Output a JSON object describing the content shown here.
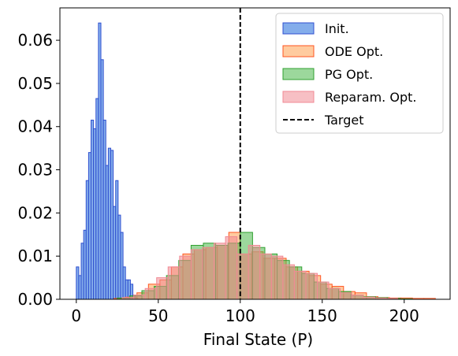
{
  "chart_data": {
    "type": "histogram",
    "xlabel": "Final State (P)",
    "ylabel": "",
    "xlim": [
      -10,
      228
    ],
    "ylim": [
      0,
      0.0675
    ],
    "x_ticks": [
      0,
      50,
      100,
      150,
      200
    ],
    "y_ticks": [
      0.0,
      0.01,
      0.02,
      0.03,
      0.04,
      0.05,
      0.06
    ],
    "y_tick_labels": [
      "0.00",
      "0.01",
      "0.02",
      "0.03",
      "0.04",
      "0.05",
      "0.06"
    ],
    "grid": false,
    "legend": "top-right",
    "target": {
      "name": "Target",
      "x": 100,
      "style": "dashed",
      "color": "#000000"
    },
    "series": [
      {
        "name": "Init.",
        "fill": "#6f9fe8",
        "edge": "#3050d0",
        "fill_opacity": 0.85,
        "bin_width": 1.5,
        "bins": [
          {
            "x0": 0.0,
            "value": 0.0075
          },
          {
            "x0": 1.5,
            "value": 0.0055
          },
          {
            "x0": 3.0,
            "value": 0.013
          },
          {
            "x0": 4.5,
            "value": 0.016
          },
          {
            "x0": 6.0,
            "value": 0.0275
          },
          {
            "x0": 7.5,
            "value": 0.034
          },
          {
            "x0": 9.0,
            "value": 0.0415
          },
          {
            "x0": 10.5,
            "value": 0.0395
          },
          {
            "x0": 12.0,
            "value": 0.0465
          },
          {
            "x0": 13.5,
            "value": 0.064
          },
          {
            "x0": 15.0,
            "value": 0.0555
          },
          {
            "x0": 16.5,
            "value": 0.0415
          },
          {
            "x0": 18.0,
            "value": 0.031
          },
          {
            "x0": 19.5,
            "value": 0.035
          },
          {
            "x0": 21.0,
            "value": 0.0345
          },
          {
            "x0": 22.5,
            "value": 0.0215
          },
          {
            "x0": 24.0,
            "value": 0.0275
          },
          {
            "x0": 25.5,
            "value": 0.0195
          },
          {
            "x0": 27.0,
            "value": 0.0155
          },
          {
            "x0": 28.5,
            "value": 0.0075
          },
          {
            "x0": 30.0,
            "value": 0.0045
          },
          {
            "x0": 31.5,
            "value": 0.0045
          },
          {
            "x0": 33.0,
            "value": 0.0035
          },
          {
            "x0": 34.5,
            "value": 0.001
          },
          {
            "x0": 36.0,
            "value": 0.0003
          }
        ]
      },
      {
        "name": "ODE Opt.",
        "fill": "#ffa050",
        "edge": "#ff5522",
        "fill_opacity": 0.55,
        "bin_width": 7,
        "bins": [
          {
            "x0": 23,
            "value": 0.0002
          },
          {
            "x0": 30,
            "value": 0.0005
          },
          {
            "x0": 37,
            "value": 0.0015
          },
          {
            "x0": 44,
            "value": 0.0035
          },
          {
            "x0": 51,
            "value": 0.0045
          },
          {
            "x0": 58,
            "value": 0.0075
          },
          {
            "x0": 65,
            "value": 0.0105
          },
          {
            "x0": 72,
            "value": 0.0115
          },
          {
            "x0": 79,
            "value": 0.012
          },
          {
            "x0": 86,
            "value": 0.0125
          },
          {
            "x0": 93,
            "value": 0.0155
          },
          {
            "x0": 100,
            "value": 0.0105
          },
          {
            "x0": 107,
            "value": 0.011
          },
          {
            "x0": 114,
            "value": 0.0095
          },
          {
            "x0": 121,
            "value": 0.0095
          },
          {
            "x0": 128,
            "value": 0.0075
          },
          {
            "x0": 135,
            "value": 0.0065
          },
          {
            "x0": 142,
            "value": 0.0055
          },
          {
            "x0": 149,
            "value": 0.0035
          },
          {
            "x0": 156,
            "value": 0.003
          },
          {
            "x0": 163,
            "value": 0.0018
          },
          {
            "x0": 170,
            "value": 0.0015
          },
          {
            "x0": 177,
            "value": 0.0006
          },
          {
            "x0": 184,
            "value": 0.0004
          },
          {
            "x0": 191,
            "value": 0.0003
          },
          {
            "x0": 198,
            "value": 0.0003
          },
          {
            "x0": 205,
            "value": 0.0002
          },
          {
            "x0": 212,
            "value": 0.0002
          }
        ]
      },
      {
        "name": "PG Opt.",
        "fill": "#4ab84a",
        "edge": "#30a030",
        "fill_opacity": 0.55,
        "bin_width": 7.5,
        "bins": [
          {
            "x0": 25,
            "value": 0.0003
          },
          {
            "x0": 32.5,
            "value": 0.0008
          },
          {
            "x0": 40,
            "value": 0.002
          },
          {
            "x0": 47.5,
            "value": 0.003
          },
          {
            "x0": 55,
            "value": 0.0055
          },
          {
            "x0": 62.5,
            "value": 0.009
          },
          {
            "x0": 70,
            "value": 0.0125
          },
          {
            "x0": 77.5,
            "value": 0.013
          },
          {
            "x0": 85,
            "value": 0.0125
          },
          {
            "x0": 92.5,
            "value": 0.013
          },
          {
            "x0": 100,
            "value": 0.0155
          },
          {
            "x0": 107.5,
            "value": 0.012
          },
          {
            "x0": 115,
            "value": 0.0105
          },
          {
            "x0": 122.5,
            "value": 0.009
          },
          {
            "x0": 130,
            "value": 0.0075
          },
          {
            "x0": 137.5,
            "value": 0.006
          },
          {
            "x0": 145,
            "value": 0.004
          },
          {
            "x0": 152.5,
            "value": 0.0025
          },
          {
            "x0": 160,
            "value": 0.0018
          },
          {
            "x0": 167.5,
            "value": 0.001
          },
          {
            "x0": 175,
            "value": 0.0006
          },
          {
            "x0": 182.5,
            "value": 0.0004
          },
          {
            "x0": 190,
            "value": 0.0002
          },
          {
            "x0": 197.5,
            "value": 0.0001
          }
        ]
      },
      {
        "name": "Reparam. Opt.",
        "fill": "#f08a94",
        "edge": "#f08a94",
        "fill_opacity": 0.55,
        "bin_width": 7,
        "bins": [
          {
            "x0": 28,
            "value": 0.0004
          },
          {
            "x0": 35,
            "value": 0.001
          },
          {
            "x0": 42,
            "value": 0.0025
          },
          {
            "x0": 49,
            "value": 0.005
          },
          {
            "x0": 56,
            "value": 0.0075
          },
          {
            "x0": 63,
            "value": 0.01
          },
          {
            "x0": 70,
            "value": 0.0115
          },
          {
            "x0": 77,
            "value": 0.012
          },
          {
            "x0": 84,
            "value": 0.013
          },
          {
            "x0": 91,
            "value": 0.0145
          },
          {
            "x0": 98,
            "value": 0.0105
          },
          {
            "x0": 105,
            "value": 0.0125
          },
          {
            "x0": 112,
            "value": 0.0105
          },
          {
            "x0": 119,
            "value": 0.01
          },
          {
            "x0": 126,
            "value": 0.008
          },
          {
            "x0": 133,
            "value": 0.0065
          },
          {
            "x0": 140,
            "value": 0.006
          },
          {
            "x0": 147,
            "value": 0.004
          },
          {
            "x0": 154,
            "value": 0.0025
          },
          {
            "x0": 161,
            "value": 0.0015
          },
          {
            "x0": 168,
            "value": 0.001
          },
          {
            "x0": 175,
            "value": 0.0005
          },
          {
            "x0": 182,
            "value": 0.0003
          },
          {
            "x0": 189,
            "value": 0.0002
          }
        ]
      }
    ]
  }
}
